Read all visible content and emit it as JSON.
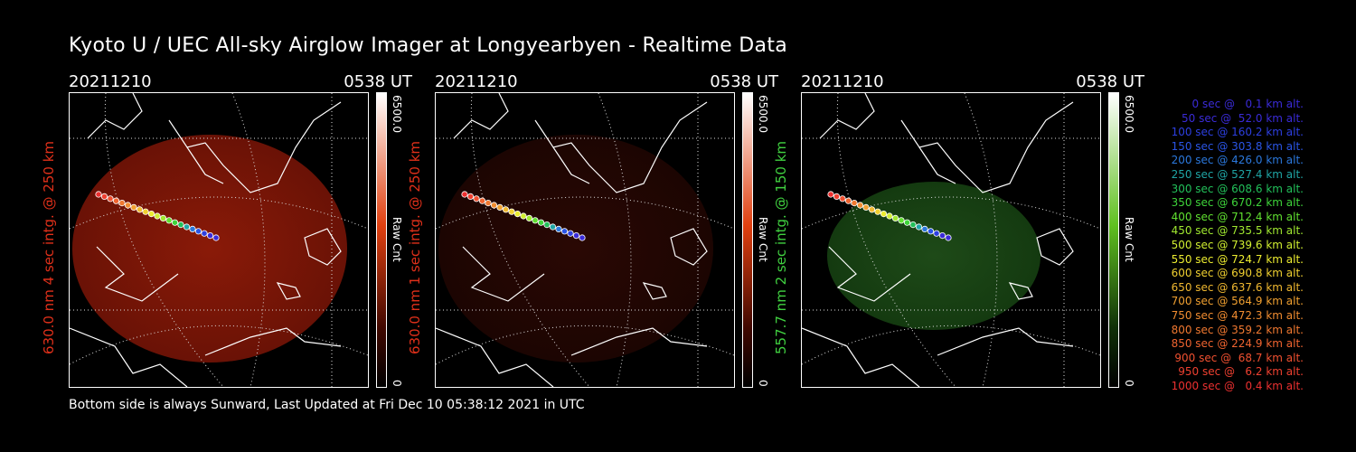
{
  "title": "Kyoto U / UEC All-sky Airglow Imager at Longyearbyen - Realtime Data",
  "footer": "Bottom side is always Sunward, Last Updated at Fri Dec 10 05:38:12 2021 in UTC",
  "panels": [
    {
      "date": "20211210",
      "time": "0538 UT",
      "ylabel": "630.0 nm 4 sec intg. @ 250 km",
      "label_color": "#e0301a",
      "cbar_max": "6500.0",
      "cbar_unit": "Raw Cnt",
      "cbar_min": "0"
    },
    {
      "date": "20211210",
      "time": "0538 UT",
      "ylabel": "630.0 nm 1 sec intg. @ 250 km",
      "label_color": "#e0301a",
      "cbar_max": "6500.0",
      "cbar_unit": "Raw Cnt",
      "cbar_min": "0"
    },
    {
      "date": "20211210",
      "time": "0538 UT",
      "ylabel": "557.7 nm 2 sec intg. @ 150 km",
      "label_color": "#40d040",
      "cbar_max": "6500.0",
      "cbar_unit": "Raw Cnt",
      "cbar_min": "0"
    }
  ],
  "legend": [
    {
      "text": "0 sec @   0.1 km alt.",
      "color": "#3a2bd8"
    },
    {
      "text": "50 sec @  52.0 km alt.",
      "color": "#3a2bd8"
    },
    {
      "text": "100 sec @ 160.2 km alt.",
      "color": "#2d3fe0"
    },
    {
      "text": "150 sec @ 303.8 km alt.",
      "color": "#2a55e6"
    },
    {
      "text": "200 sec @ 426.0 km alt.",
      "color": "#2b78dc"
    },
    {
      "text": "250 sec @ 527.4 km alt.",
      "color": "#1fa5a5"
    },
    {
      "text": "300 sec @ 608.6 km alt.",
      "color": "#22c05a"
    },
    {
      "text": "350 sec @ 670.2 km alt.",
      "color": "#3ed43a"
    },
    {
      "text": "400 sec @ 712.4 km alt.",
      "color": "#60e030"
    },
    {
      "text": "450 sec @ 735.5 km alt.",
      "color": "#a0e830"
    },
    {
      "text": "500 sec @ 739.6 km alt.",
      "color": "#d0ee30"
    },
    {
      "text": "550 sec @ 724.7 km alt.",
      "color": "#ecec30"
    },
    {
      "text": "600 sec @ 690.8 km alt.",
      "color": "#f0d030"
    },
    {
      "text": "650 sec @ 637.6 km alt.",
      "color": "#f0b830"
    },
    {
      "text": "700 sec @ 564.9 km alt.",
      "color": "#f0a030"
    },
    {
      "text": "750 sec @ 472.3 km alt.",
      "color": "#f08c30"
    },
    {
      "text": "800 sec @ 359.2 km alt.",
      "color": "#f07830"
    },
    {
      "text": "850 sec @ 224.9 km alt.",
      "color": "#f06430"
    },
    {
      "text": "900 sec @  68.7 km alt.",
      "color": "#f05030"
    },
    {
      "text": "950 sec @   6.2 km alt.",
      "color": "#ee4030"
    },
    {
      "text": "1000 sec @   0.4 km alt.",
      "color": "#ec3030"
    }
  ],
  "colors": {
    "red_ramp_top": "#ffffff",
    "red_ramp_mid": "#e04010",
    "green_ramp_mid": "#60c020"
  }
}
